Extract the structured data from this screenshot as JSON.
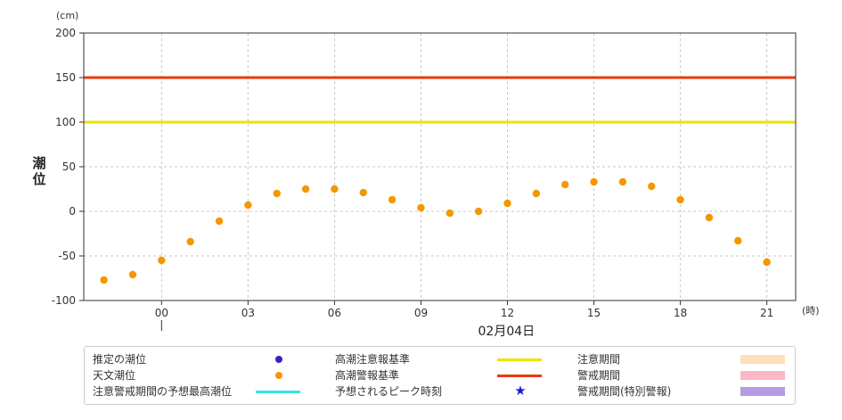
{
  "chart_data": {
    "type": "scatter",
    "y_unit": "(cm)",
    "ylabel": "潮位",
    "x_unit": "(時)",
    "date_label": "02月04日",
    "ylim": [
      -100,
      200
    ],
    "yticks": [
      -100,
      -50,
      0,
      50,
      100,
      150,
      200
    ],
    "xlim": [
      -2.7,
      22.0
    ],
    "xticks": [
      0,
      3,
      6,
      9,
      12,
      15,
      18,
      21
    ],
    "xtick_labels": [
      "00",
      "03",
      "06",
      "09",
      "12",
      "15",
      "18",
      "21"
    ],
    "grid": true,
    "reference_lines": [
      {
        "name": "高潮注意報基準",
        "value": 100,
        "color": "#e6e600"
      },
      {
        "name": "高潮警報基準",
        "value": 150,
        "color": "#e83a0e"
      }
    ],
    "series": [
      {
        "name": "天文潮位",
        "color": "#f39800",
        "x": [
          -2,
          -1,
          0,
          1,
          2,
          3,
          4,
          5,
          6,
          7,
          8,
          9,
          10,
          11,
          12,
          13,
          14,
          15,
          16,
          17,
          18,
          19,
          20,
          21
        ],
        "y": [
          -77,
          -71,
          -55,
          -34,
          -11,
          7,
          20,
          25,
          25,
          21,
          13,
          4,
          -2,
          0,
          9,
          20,
          30,
          33,
          33,
          28,
          13,
          -7,
          -33,
          -57
        ]
      }
    ]
  },
  "legend": [
    {
      "label": "推定の潮位",
      "symbol": "dot",
      "color": "#3b1fc9"
    },
    {
      "label": "天文潮位",
      "symbol": "dot",
      "color": "#f39800"
    },
    {
      "label": "注意警戒期間の予想最高潮位",
      "symbol": "line",
      "color": "#33e6e6"
    },
    {
      "label": "高潮注意報基準",
      "symbol": "line",
      "color": "#e6e600"
    },
    {
      "label": "高潮警報基準",
      "symbol": "line",
      "color": "#e83a0e"
    },
    {
      "label": "予想されるピーク時刻",
      "symbol": "star",
      "color": "#1a1adb"
    },
    {
      "label": "注意期間",
      "symbol": "rect",
      "color": "#fde0b8"
    },
    {
      "label": "警戒期間",
      "symbol": "rect",
      "color": "#fbb6c8"
    },
    {
      "label": "警戒期間(特別警報)",
      "symbol": "rect",
      "color": "#b39de0"
    }
  ]
}
